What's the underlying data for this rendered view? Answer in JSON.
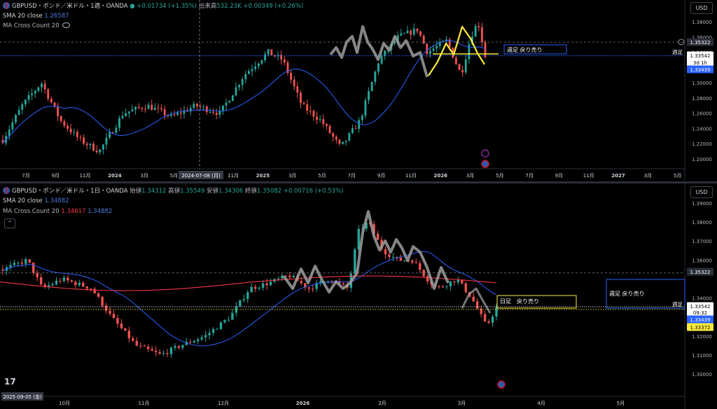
{
  "weekly": {
    "legend": {
      "symbol": "GBPUSD・ポンド／米ドル・1週・OANDA",
      "change": "+0.01734 (+1.35%)",
      "volume_label": "出来高",
      "volume_value": "532.23K",
      "volume_change": "+0.00349 (+0.26%)",
      "sma_label": "SMA 20 close",
      "sma_value": "1.26587",
      "ma_cross_label": "MA Cross Count 20"
    },
    "currency": "USD",
    "annotation": "週足 戻り売り",
    "side_label": "週足",
    "price_tags": {
      "top": "1.35322",
      "current": "1.33542",
      "countdown": "3d 1h",
      "sma": "1.33439"
    },
    "crosshair_date": "2024-07-08 (月)"
  },
  "daily": {
    "legend": {
      "symbol": "GBPUSD・ポンド／米ドル・1日・OANDA",
      "open_label": "始値",
      "open": "1.34312",
      "high_label": "高値",
      "high": "1.35549",
      "low_label": "安値",
      "low": "1.34306",
      "close_label": "終値",
      "close": "1.35082",
      "change": "+0.00716 (+0.53%)",
      "sma_label": "SMA 20 close",
      "sma_value": "1.34882",
      "ma_cross_label": "MA Cross Count 20",
      "ma_cross_v1": "1.34617",
      "ma_cross_v2": "1.34882"
    },
    "currency": "USD",
    "annotation_daily": "日足　戻り売り",
    "annotation_weekly": "週足 戻り売り",
    "side_label": "週足",
    "price_tags": {
      "top": "1.35322",
      "current": "1.33542",
      "countdown": "09:32",
      "sma": "1.33439",
      "ma": "1.33372"
    },
    "crosshair_date": "2025-09-05 (金)"
  },
  "chart_data": [
    {
      "type": "candlestick",
      "title": "GBPUSD・ポンド／米ドル・1週・OANDA",
      "y_ticks": [
        "1.38000",
        "1.36000",
        "1.34000",
        "1.32000",
        "1.30000",
        "1.28000",
        "1.26000",
        "1.24000",
        "1.22000",
        "1.20000"
      ],
      "x_ticks": [
        "7月",
        "9月",
        "11月",
        "2024",
        "3月",
        "5月",
        "9月",
        "11月",
        "2025",
        "3月",
        "5月",
        "7月",
        "9月",
        "11月",
        "2026",
        "3月",
        "5月",
        "7月",
        "9月",
        "11月",
        "2027",
        "3月",
        "5月"
      ],
      "series": [
        {
          "name": "SMA 20 close",
          "last": 1.33439
        }
      ],
      "last_close": 1.33542,
      "horizontal_lines": [
        1.35322,
        1.33542
      ]
    },
    {
      "type": "candlestick",
      "title": "GBPUSD・ポンド／米ドル・1日・OANDA",
      "y_ticks": [
        "1.39000",
        "1.38000",
        "1.37000",
        "1.36000",
        "1.34000",
        "1.32000",
        "1.31000",
        "1.30000"
      ],
      "x_ticks": [
        "10月",
        "11月",
        "12月",
        "2026",
        "2月",
        "3月",
        "4月",
        "5月"
      ],
      "series": [
        {
          "name": "SMA 20 close",
          "last": 1.33439
        },
        {
          "name": "MA Cross Count 20",
          "last": 1.33372
        }
      ],
      "ohlc_last": {
        "open": 1.34312,
        "high": 1.35549,
        "low": 1.34306,
        "close": 1.35082
      },
      "last_close": 1.33542,
      "horizontal_lines": [
        1.35322,
        1.33542
      ]
    }
  ]
}
